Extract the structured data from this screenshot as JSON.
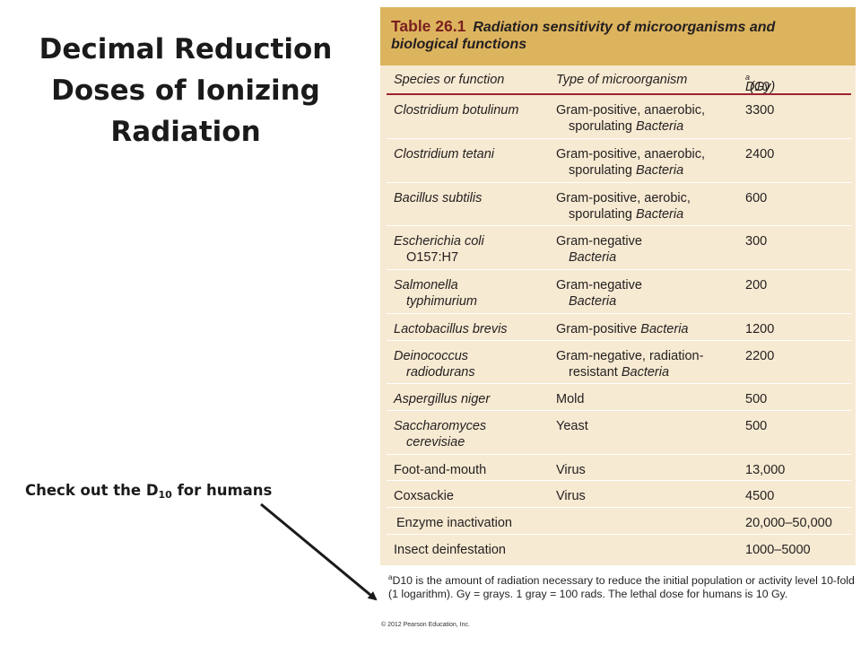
{
  "slide": {
    "title_lines": [
      "Decimal Reduction",
      "Doses of Ionizing",
      "Radiation"
    ],
    "callout_prefix": "Check out the D",
    "callout_sub": "10",
    "callout_suffix": " for humans"
  },
  "table": {
    "number": "Table 26.1",
    "title_line1": "Radiation sensitivity of microorganisms and",
    "title_line2": "biological functions",
    "headers": {
      "species": "Species or function",
      "type": "Type of microorganism",
      "dose_prefix": "D10",
      "dose_sup": "a",
      "dose_suffix": " (Gy)"
    },
    "rows": [
      {
        "sp1": "Clostridium botulinum",
        "sp2": "",
        "t1": "Gram-positive, anaerobic,",
        "t2a": "sporulating ",
        "t2b": "Bacteria",
        "dose": "3300"
      },
      {
        "sp1": "Clostridium tetani",
        "sp2": "",
        "t1": "Gram-positive, anaerobic,",
        "t2a": "sporulating ",
        "t2b": "Bacteria",
        "dose": "2400"
      },
      {
        "sp1": "Bacillus subtilis",
        "sp2": "",
        "t1": "Gram-positive, aerobic,",
        "t2a": "sporulating ",
        "t2b": "Bacteria",
        "dose": "600"
      },
      {
        "sp1": "Escherichia coli",
        "sp2": "O157:H7",
        "t1": "Gram-negative",
        "t2a": "",
        "t2b": "Bacteria",
        "dose": "300"
      },
      {
        "sp1": "Salmonella",
        "sp2": "typhimurium",
        "t1": "Gram-negative",
        "t2a": "",
        "t2b": "Bacteria",
        "dose": "200"
      },
      {
        "sp1": "Lactobacillus brevis",
        "t1a": "Gram-positive ",
        "t1b": "Bacteria",
        "dose": "1200"
      },
      {
        "sp1": "Deinococcus",
        "sp2": "radiodurans",
        "t1": "Gram-negative, radiation-",
        "t2a": "resistant ",
        "t2b": "Bacteria",
        "dose": "2200"
      },
      {
        "sp1": "Aspergillus niger",
        "t1": "Mold",
        "dose": "500"
      },
      {
        "sp1": "Saccharomyces",
        "sp2": "cerevisiae",
        "t1": "Yeast",
        "t2a": "",
        "t2b": "",
        "dose": "500"
      },
      {
        "sp1": "Foot-and-mouth",
        "t1": "Virus",
        "dose": "13,000"
      },
      {
        "sp1": "Coxsackie",
        "t1": "Virus",
        "dose": "4500"
      },
      {
        "sp1": "Enzyme inactivation",
        "t1": "",
        "dose": "20,000–50,000"
      },
      {
        "sp1": "Insect deinfestation",
        "t1": "",
        "dose": "1000–5000"
      }
    ],
    "footnote_sup": "a",
    "footnote": "D10 is the amount of radiation necessary to reduce the initial population or activity level 10-fold (1 logarithm). Gy = grays. 1 gray = 100 rads. The lethal dose for humans is 10 Gy.",
    "copyright": "© 2012 Pearson Education, Inc."
  },
  "colors": {
    "header_band": "#ddb45e",
    "table_body": "#f7ead2",
    "rule": "#9b2335",
    "table_number": "#7a1f1f"
  }
}
